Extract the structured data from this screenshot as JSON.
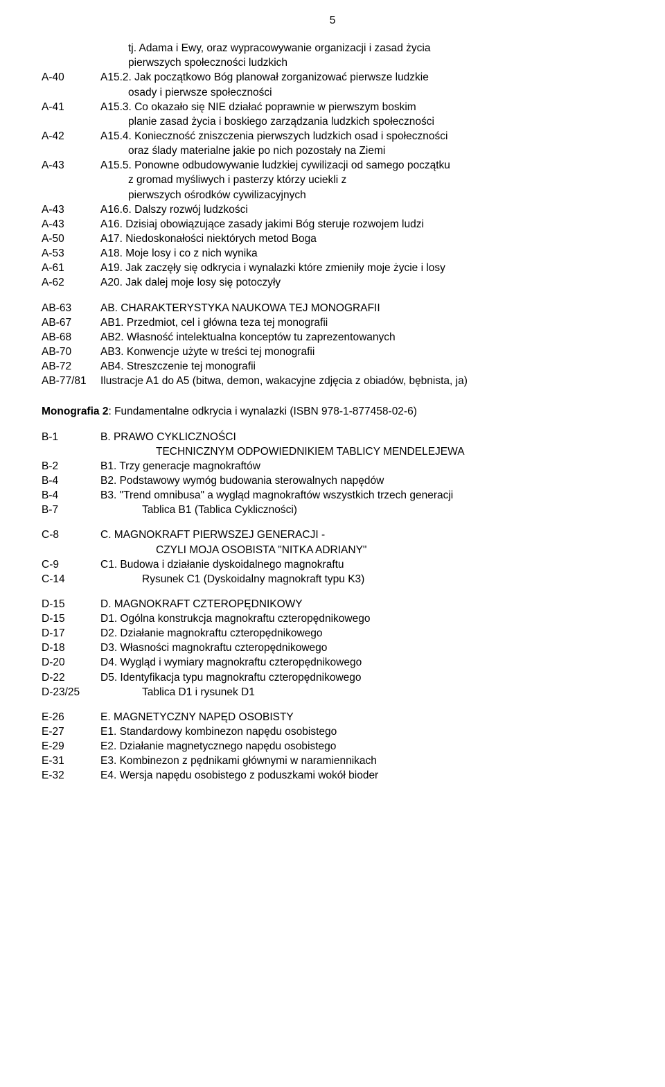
{
  "pageNumber": "5",
  "section1": [
    {
      "ref": "",
      "text": "tj. Adama i Ewy, oraz wypracowywanie organizacji i zasad życia",
      "indent": "indent1"
    },
    {
      "ref": "",
      "text": "pierwszych społeczności ludzkich",
      "indent": "indent1"
    },
    {
      "ref": "A-40",
      "text": "A15.2. Jak początkowo Bóg planował zorganizować pierwsze ludzkie",
      "indent": ""
    },
    {
      "ref": "",
      "text": "osady i pierwsze społeczności",
      "indent": "indent1"
    },
    {
      "ref": "A-41",
      "text": "A15.3. Co okazało się NIE działać poprawnie w pierwszym boskim",
      "indent": ""
    },
    {
      "ref": "",
      "text": "planie zasad życia i boskiego zarządzania ludzkich społeczności",
      "indent": "indent1"
    },
    {
      "ref": "A-42",
      "text": "A15.4. Konieczność zniszczenia pierwszych ludzkich osad i społeczności",
      "indent": ""
    },
    {
      "ref": "",
      "text": "oraz ślady materialne jakie po nich pozostały na Ziemi",
      "indent": "indent1"
    },
    {
      "ref": "A-43",
      "text": "A15.5. Ponowne odbudowywanie ludzkiej cywilizacji od samego początku",
      "indent": ""
    },
    {
      "ref": "",
      "text": "z gromad myśliwych i pasterzy którzy uciekli z",
      "indent": "indent1"
    },
    {
      "ref": "",
      "text": "pierwszych ośrodków cywilizacyjnych",
      "indent": "indent1"
    },
    {
      "ref": "A-43",
      "text": "A16.6. Dalszy rozwój ludzkości",
      "indent": ""
    },
    {
      "ref": "A-43",
      "text": "A16. Dzisiaj obowiązujące zasady jakimi Bóg steruje rozwojem ludzi",
      "indent": ""
    },
    {
      "ref": "A-50",
      "text": "A17. Niedoskonałości niektórych metod Boga",
      "indent": ""
    },
    {
      "ref": "A-53",
      "text": "A18. Moje losy i co z nich wynika",
      "indent": ""
    },
    {
      "ref": "A-61",
      "text": "A19. Jak zaczęły się odkrycia i wynalazki które zmieniły moje życie i losy",
      "indent": ""
    },
    {
      "ref": "A-62",
      "text": "A20. Jak dalej moje losy się potoczyły",
      "indent": ""
    }
  ],
  "section2": [
    {
      "ref": "AB-63",
      "text": "AB. CHARAKTERYSTYKA NAUKOWA TEJ MONOGRAFII",
      "indent": ""
    },
    {
      "ref": "AB-67",
      "text": "AB1. Przedmiot, cel i główna teza tej monografii",
      "indent": ""
    },
    {
      "ref": "AB-68",
      "text": "AB2. Własność intelektualna konceptów tu zaprezentowanych",
      "indent": ""
    },
    {
      "ref": "AB-70",
      "text": "AB3. Konwencje użyte w treści tej monografii",
      "indent": ""
    },
    {
      "ref": "AB-72",
      "text": "AB4. Streszczenie tej monografii",
      "indent": ""
    },
    {
      "ref": "AB-77/81",
      "text": "Ilustracje A1 do A5 (bitwa, demon, wakacyjne zdjęcia z obiadów, bębnista, ja)",
      "indent": ""
    }
  ],
  "monographTitle": {
    "prefix": "Monografia 2",
    "rest": ": Fundamentalne odkrycia i wynalazki (ISBN 978-1-877458-02-6)"
  },
  "section3": [
    {
      "ref": "B-1",
      "text": "B. PRAWO CYKLICZNOŚCI",
      "indent": ""
    },
    {
      "ref": "",
      "text": "TECHNICZNYM ODPOWIEDNIKIEM TABLICY MENDELEJEWA",
      "indent": "indent2"
    },
    {
      "ref": "B-2",
      "text": "B1. Trzy generacje magnokraftów",
      "indent": ""
    },
    {
      "ref": "B-4",
      "text": "B2. Podstawowy wymóg budowania sterowalnych napędów",
      "indent": ""
    },
    {
      "ref": "B-4",
      "text": "B3. \"Trend omnibusa\" a wygląd magnokraftów wszystkich trzech generacji",
      "indent": ""
    },
    {
      "ref": "B-7",
      "text": "Tablica B1 (Tablica Cykliczności)",
      "indent": "indent2"
    }
  ],
  "section4": [
    {
      "ref": "C-8",
      "text": "C. MAGNOKRAFT PIERWSZEJ GENERACJI -",
      "indent": ""
    },
    {
      "ref": "",
      "text": "CZYLI MOJA OSOBISTA \"NITKA ADRIANY\"",
      "indent": "indent2"
    },
    {
      "ref": "C-9",
      "text": "C1. Budowa i działanie dyskoidalnego magnokraftu",
      "indent": ""
    },
    {
      "ref": "C-14",
      "text": "Rysunek C1 (Dyskoidalny magnokraft typu K3)",
      "indent": "indent2"
    }
  ],
  "section5": [
    {
      "ref": "D-15",
      "text": "D. MAGNOKRAFT CZTEROPĘDNIKOWY",
      "indent": ""
    },
    {
      "ref": "D-15",
      "text": "D1. Ogólna konstrukcja magnokraftu czteropędnikowego",
      "indent": ""
    },
    {
      "ref": "D-17",
      "text": "D2. Działanie magnokraftu czteropędnikowego",
      "indent": ""
    },
    {
      "ref": "D-18",
      "text": "D3. Własności magnokraftu czteropędnikowego",
      "indent": ""
    },
    {
      "ref": "D-20",
      "text": "D4. Wygląd i wymiary magnokraftu czteropędnikowego",
      "indent": ""
    },
    {
      "ref": "D-22",
      "text": "D5. Identyfikacja typu magnokraftu czteropędnikowego",
      "indent": ""
    },
    {
      "ref": "D-23/25",
      "text": "Tablica D1 i rysunek D1",
      "indent": "indent2"
    }
  ],
  "section6": [
    {
      "ref": "E-26",
      "text": "E. MAGNETYCZNY NAPĘD OSOBISTY",
      "indent": ""
    },
    {
      "ref": "E-27",
      "text": "E1. Standardowy kombinezon napędu osobistego",
      "indent": ""
    },
    {
      "ref": "E-29",
      "text": "E2. Działanie magnetycznego napędu osobistego",
      "indent": ""
    },
    {
      "ref": "E-31",
      "text": "E3. Kombinezon z pędnikami głównymi w naramiennikach",
      "indent": ""
    },
    {
      "ref": "E-32",
      "text": "E4. Wersja napędu osobistego z poduszkami wokół bioder",
      "indent": ""
    }
  ]
}
